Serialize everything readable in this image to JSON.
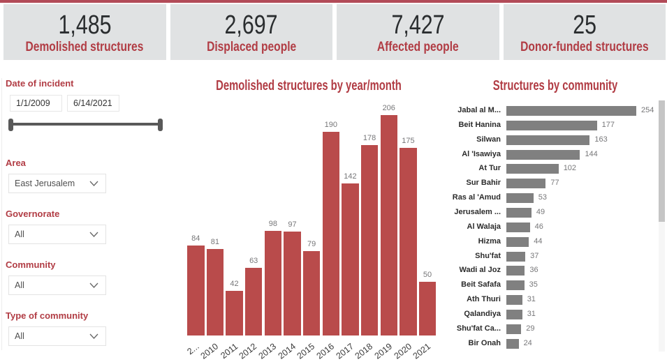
{
  "colors": {
    "top_strip": "#b24b58",
    "accent_text_red": "#b13c44",
    "column_bar_red": "#b94b4b",
    "kpi_card_bg": "#e0e2e3",
    "kpi_value_text": "#2a2d2f",
    "row_bar_gray": "#808080",
    "value_label_gray": "#777779"
  },
  "kpis": [
    {
      "value": "1,485",
      "label": "Demolished structures"
    },
    {
      "value": "2,697",
      "label": "Displaced people"
    },
    {
      "value": "7,427",
      "label": "Affected people"
    },
    {
      "value": "25",
      "label": "Donor-funded structures"
    }
  ],
  "filters": {
    "date": {
      "label": "Date of incident",
      "start": "1/1/2009",
      "end": "6/14/2021"
    },
    "selects": [
      {
        "label": "Area",
        "value": "East Jerusalem"
      },
      {
        "label": "Governorate",
        "value": "All"
      },
      {
        "label": "Community",
        "value": "All"
      },
      {
        "label": "Type of community",
        "value": "All"
      }
    ]
  },
  "chart_data": [
    {
      "type": "bar",
      "title": "Demolished structures by year/month",
      "categories": [
        "2...",
        "2010",
        "2011",
        "2012",
        "2013",
        "2014",
        "2015",
        "2016",
        "2017",
        "2018",
        "2019",
        "2020",
        "2021"
      ],
      "values": [
        84,
        81,
        42,
        63,
        98,
        97,
        79,
        190,
        142,
        178,
        206,
        175,
        50
      ],
      "xlabel": "",
      "ylabel": "",
      "ylim": [
        0,
        222
      ],
      "grid": false,
      "legend": false,
      "data_labels": true
    },
    {
      "type": "bar",
      "orientation": "horizontal",
      "title": "Structures by community",
      "categories": [
        "Jabal al M...",
        "Beit Hanina",
        "Silwan",
        "Al 'Isawiya",
        "At Tur",
        "Sur Bahir",
        "Ras al 'Amud",
        "Jerusalem ...",
        "Al Walaja",
        "Hizma",
        "Shu'fat",
        "Wadi al Joz",
        "Beit Safafa",
        "Ath Thuri",
        "Qalandiya",
        "Shu'fat Ca...",
        "Bir Onah"
      ],
      "values": [
        254,
        177,
        163,
        144,
        102,
        77,
        53,
        49,
        46,
        44,
        37,
        36,
        35,
        31,
        31,
        29,
        24
      ],
      "xlabel": "",
      "ylabel": "",
      "xlim": [
        0,
        254
      ],
      "grid": false,
      "legend": false,
      "data_labels": true,
      "scrollbar": true
    }
  ]
}
